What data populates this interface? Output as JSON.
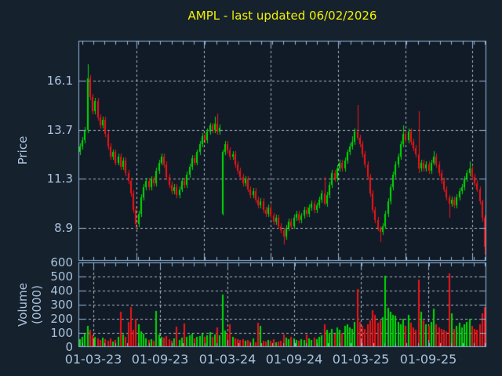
{
  "title": {
    "text": "AMPL - last updated 06/02/2026",
    "color": "#f2f200"
  },
  "price_axis": {
    "label": "Price",
    "ticks": [
      16.1,
      13.7,
      11.3,
      8.9
    ]
  },
  "volume_axis": {
    "label": "Volume (0000)",
    "ticks": [
      600,
      500,
      400,
      300,
      200,
      100,
      0
    ]
  },
  "x_axis": {
    "ticks": [
      "01-03-23",
      "01-09-23",
      "01-03-24",
      "01-09-24",
      "01-03-25",
      "01-09-25"
    ]
  },
  "colors": {
    "figure_bg": "#16212e",
    "axes_bg": "#111b28",
    "spine": "#94b8d8",
    "tick_label": "#a9c3dc",
    "grid": "rgba(205,212,220,0.85)",
    "up": "#00dc00",
    "down": "#f21414"
  },
  "chart_data": {
    "type": "candlestick",
    "title": "AMPL - last updated 06/02/2026",
    "ylabel": "Price",
    "ylabel2": "Volume (0000)",
    "x_tick_labels": [
      "01-03-23",
      "01-09-23",
      "01-03-24",
      "01-09-24",
      "01-03-25",
      "01-09-25"
    ],
    "price_yticks": [
      16.1,
      13.7,
      11.3,
      8.9
    ],
    "price_ylim": [
      7.3,
      18.05
    ],
    "volume_yticks": [
      0,
      100,
      200,
      300,
      400,
      500,
      600
    ],
    "volume_ylim": [
      0,
      600
    ],
    "grid": true,
    "legend": false,
    "up_color": "#00dc00",
    "down_color": "#f21414",
    "ohlc": [
      [
        12.6,
        13.05,
        12.45,
        12.9
      ],
      [
        12.9,
        13.35,
        12.75,
        13.2
      ],
      [
        13.2,
        13.85,
        13.05,
        13.7
      ],
      [
        13.7,
        16.9,
        13.55,
        16.2
      ],
      [
        16.2,
        16.35,
        15.15,
        15.3
      ],
      [
        15.3,
        15.45,
        14.45,
        14.6
      ],
      [
        14.6,
        15.25,
        14.45,
        15.1
      ],
      [
        15.1,
        15.25,
        14.15,
        14.3
      ],
      [
        14.3,
        14.45,
        13.75,
        13.9
      ],
      [
        13.9,
        14.35,
        13.75,
        14.2
      ],
      [
        14.2,
        14.35,
        13.35,
        13.5
      ],
      [
        13.5,
        13.65,
        12.75,
        12.9
      ],
      [
        12.9,
        13.05,
        12.25,
        12.4
      ],
      [
        12.4,
        12.75,
        12.25,
        12.6
      ],
      [
        12.6,
        12.75,
        11.95,
        12.1
      ],
      [
        12.1,
        12.55,
        11.95,
        12.4
      ],
      [
        12.4,
        12.55,
        11.75,
        11.9
      ],
      [
        11.9,
        12.35,
        11.75,
        12.2
      ],
      [
        12.2,
        12.35,
        11.45,
        11.6
      ],
      [
        11.6,
        11.75,
        11.05,
        11.2
      ],
      [
        11.2,
        11.35,
        10.45,
        10.6
      ],
      [
        10.6,
        10.75,
        9.65,
        9.8
      ],
      [
        9.8,
        9.95,
        8.85,
        9.1
      ],
      [
        9.1,
        9.75,
        8.95,
        9.6
      ],
      [
        9.6,
        10.55,
        9.45,
        10.4
      ],
      [
        10.4,
        11.05,
        10.25,
        10.9
      ],
      [
        10.9,
        11.35,
        10.75,
        11.2
      ],
      [
        11.2,
        11.35,
        10.75,
        10.9
      ],
      [
        10.9,
        11.45,
        10.75,
        11.3
      ],
      [
        11.3,
        11.45,
        10.95,
        11.1
      ],
      [
        11.1,
        11.85,
        10.95,
        11.7
      ],
      [
        11.7,
        12.25,
        11.55,
        12.1
      ],
      [
        12.1,
        12.55,
        11.95,
        12.4
      ],
      [
        12.4,
        12.55,
        11.85,
        12.0
      ],
      [
        12.0,
        12.15,
        11.25,
        11.4
      ],
      [
        11.4,
        11.55,
        10.85,
        11.0
      ],
      [
        11.0,
        11.15,
        10.55,
        10.7
      ],
      [
        10.7,
        11.05,
        10.55,
        10.9
      ],
      [
        10.9,
        11.05,
        10.35,
        10.5
      ],
      [
        10.5,
        10.95,
        10.35,
        10.8
      ],
      [
        10.8,
        11.35,
        10.65,
        11.2
      ],
      [
        11.2,
        11.35,
        10.85,
        11.0
      ],
      [
        11.0,
        11.65,
        10.85,
        11.5
      ],
      [
        11.5,
        12.05,
        11.35,
        11.9
      ],
      [
        11.9,
        12.45,
        11.75,
        12.3
      ],
      [
        12.3,
        12.45,
        11.95,
        12.1
      ],
      [
        12.1,
        12.75,
        11.95,
        12.6
      ],
      [
        12.6,
        13.15,
        12.45,
        13.0
      ],
      [
        13.0,
        13.55,
        12.85,
        13.4
      ],
      [
        13.4,
        13.55,
        13.05,
        13.2
      ],
      [
        13.2,
        13.75,
        13.05,
        13.6
      ],
      [
        13.6,
        14.05,
        13.45,
        13.9
      ],
      [
        13.9,
        14.05,
        13.55,
        13.7
      ],
      [
        13.7,
        14.35,
        13.55,
        14.0
      ],
      [
        14.0,
        14.5,
        13.45,
        13.6
      ],
      [
        13.6,
        13.95,
        13.45,
        13.8
      ],
      [
        9.6,
        12.75,
        9.5,
        12.6
      ],
      [
        12.6,
        13.15,
        12.45,
        13.0
      ],
      [
        13.0,
        13.15,
        12.55,
        12.7
      ],
      [
        12.7,
        12.85,
        12.25,
        12.4
      ],
      [
        12.4,
        12.65,
        12.25,
        12.5
      ],
      [
        12.5,
        12.65,
        11.85,
        12.0
      ],
      [
        12.0,
        12.15,
        11.55,
        11.7
      ],
      [
        11.7,
        11.85,
        11.25,
        11.4
      ],
      [
        11.4,
        11.55,
        10.95,
        11.1
      ],
      [
        11.1,
        11.45,
        10.95,
        11.3
      ],
      [
        11.3,
        11.45,
        10.65,
        10.8
      ],
      [
        10.8,
        10.95,
        10.35,
        10.5
      ],
      [
        10.5,
        10.85,
        10.35,
        10.7
      ],
      [
        10.7,
        10.85,
        10.15,
        10.3
      ],
      [
        10.3,
        10.45,
        9.85,
        10.0
      ],
      [
        10.0,
        10.35,
        9.85,
        10.2
      ],
      [
        10.2,
        10.35,
        9.65,
        9.8
      ],
      [
        9.8,
        9.95,
        9.45,
        9.6
      ],
      [
        9.6,
        10.05,
        9.45,
        9.9
      ],
      [
        9.9,
        10.05,
        9.35,
        9.5
      ],
      [
        9.5,
        9.65,
        9.05,
        9.2
      ],
      [
        9.2,
        9.55,
        9.05,
        9.4
      ],
      [
        9.4,
        9.55,
        8.85,
        9.0
      ],
      [
        9.0,
        9.15,
        8.65,
        8.8
      ],
      [
        8.8,
        8.9,
        8.1,
        8.5
      ],
      [
        8.5,
        9.05,
        8.35,
        8.9
      ],
      [
        8.9,
        9.35,
        8.75,
        9.2
      ],
      [
        9.2,
        9.35,
        8.85,
        9.0
      ],
      [
        9.0,
        9.55,
        8.85,
        9.4
      ],
      [
        9.4,
        9.75,
        9.25,
        9.6
      ],
      [
        9.6,
        9.75,
        9.15,
        9.3
      ],
      [
        9.3,
        9.65,
        9.15,
        9.5
      ],
      [
        9.5,
        9.95,
        9.35,
        9.8
      ],
      [
        9.8,
        9.95,
        9.45,
        9.6
      ],
      [
        9.6,
        10.05,
        9.45,
        9.9
      ],
      [
        9.9,
        10.25,
        9.75,
        10.1
      ],
      [
        10.1,
        10.25,
        9.65,
        9.8
      ],
      [
        9.8,
        10.15,
        9.65,
        10.0
      ],
      [
        10.0,
        10.45,
        9.85,
        10.3
      ],
      [
        10.3,
        10.75,
        10.15,
        10.6
      ],
      [
        10.6,
        11.4,
        10.0,
        10.1
      ],
      [
        10.1,
        10.65,
        9.95,
        10.5
      ],
      [
        10.5,
        11.15,
        10.35,
        11.0
      ],
      [
        11.0,
        11.75,
        10.85,
        11.6
      ],
      [
        11.6,
        11.75,
        11.15,
        11.3
      ],
      [
        11.3,
        11.95,
        11.15,
        11.8
      ],
      [
        11.8,
        12.25,
        11.65,
        12.1
      ],
      [
        12.1,
        12.25,
        11.65,
        11.8
      ],
      [
        11.8,
        12.35,
        11.65,
        12.2
      ],
      [
        12.2,
        12.75,
        12.05,
        12.6
      ],
      [
        12.6,
        13.05,
        12.45,
        12.9
      ],
      [
        12.9,
        13.4,
        12.75,
        13.1
      ],
      [
        13.1,
        13.75,
        12.95,
        13.6
      ],
      [
        13.6,
        14.9,
        13.2,
        13.3
      ],
      [
        13.3,
        13.45,
        12.85,
        13.0
      ],
      [
        13.0,
        13.15,
        12.35,
        12.5
      ],
      [
        12.5,
        12.65,
        11.85,
        12.0
      ],
      [
        12.0,
        12.15,
        11.25,
        11.4
      ],
      [
        11.4,
        11.55,
        10.45,
        10.6
      ],
      [
        10.6,
        10.75,
        9.65,
        9.8
      ],
      [
        9.8,
        9.95,
        9.15,
        9.3
      ],
      [
        9.3,
        9.45,
        8.75,
        8.9
      ],
      [
        8.9,
        9.0,
        8.2,
        8.7
      ],
      [
        8.7,
        9.15,
        8.55,
        9.0
      ],
      [
        9.0,
        9.75,
        8.85,
        9.6
      ],
      [
        9.6,
        10.35,
        9.45,
        10.2
      ],
      [
        10.2,
        11.05,
        10.05,
        10.9
      ],
      [
        10.9,
        11.65,
        10.75,
        11.5
      ],
      [
        11.5,
        12.15,
        11.35,
        12.0
      ],
      [
        12.0,
        12.55,
        11.85,
        12.4
      ],
      [
        12.4,
        13.15,
        12.25,
        13.0
      ],
      [
        13.0,
        13.9,
        12.85,
        13.5
      ],
      [
        13.5,
        13.65,
        13.05,
        13.2
      ],
      [
        13.2,
        13.75,
        13.05,
        13.6
      ],
      [
        13.6,
        13.75,
        12.95,
        13.1
      ],
      [
        13.1,
        13.25,
        12.65,
        12.8
      ],
      [
        12.8,
        12.95,
        12.35,
        12.5
      ],
      [
        12.5,
        14.6,
        11.6,
        11.8
      ],
      [
        11.8,
        12.25,
        11.65,
        12.1
      ],
      [
        12.1,
        12.25,
        11.65,
        11.8
      ],
      [
        11.8,
        12.15,
        11.65,
        12.0
      ],
      [
        12.0,
        12.15,
        11.55,
        11.7
      ],
      [
        11.7,
        12.25,
        11.55,
        12.1
      ],
      [
        12.1,
        12.65,
        11.95,
        12.4
      ],
      [
        12.4,
        12.55,
        11.85,
        12.0
      ],
      [
        12.0,
        12.15,
        11.45,
        11.6
      ],
      [
        11.6,
        11.75,
        11.05,
        11.2
      ],
      [
        11.2,
        11.35,
        10.65,
        10.8
      ],
      [
        10.8,
        10.95,
        10.25,
        10.4
      ],
      [
        10.4,
        10.5,
        9.4,
        10.1
      ],
      [
        10.1,
        10.45,
        9.95,
        10.3
      ],
      [
        10.3,
        10.45,
        9.85,
        10.0
      ],
      [
        10.0,
        10.55,
        9.85,
        10.4
      ],
      [
        10.4,
        10.85,
        10.25,
        10.7
      ],
      [
        10.7,
        11.05,
        10.55,
        10.9
      ],
      [
        10.9,
        11.45,
        10.75,
        11.3
      ],
      [
        11.3,
        11.75,
        11.15,
        11.6
      ],
      [
        11.6,
        12.15,
        11.45,
        11.8
      ],
      [
        11.8,
        11.95,
        11.25,
        11.4
      ],
      [
        11.4,
        11.55,
        10.95,
        11.1
      ],
      [
        11.1,
        11.25,
        10.65,
        10.8
      ],
      [
        10.8,
        10.95,
        10.05,
        10.2
      ],
      [
        10.2,
        10.3,
        9.2,
        9.4
      ],
      [
        9.4,
        9.5,
        7.6,
        8.0
      ]
    ],
    "volumes": [
      55,
      70,
      95,
      150,
      120,
      85,
      75,
      60,
      50,
      65,
      55,
      45,
      60,
      40,
      50,
      70,
      250,
      90,
      75,
      180,
      285,
      120,
      200,
      160,
      110,
      95,
      60,
      50,
      55,
      45,
      255,
      90,
      75,
      65,
      80,
      55,
      45,
      60,
      145,
      50,
      65,
      165,
      75,
      85,
      95,
      60,
      70,
      80,
      95,
      70,
      85,
      105,
      75,
      90,
      140,
      85,
      370,
      115,
      95,
      160,
      70,
      62,
      55,
      48,
      58,
      45,
      52,
      40,
      60,
      35,
      175,
      150,
      42,
      38,
      50,
      44,
      58,
      36,
      40,
      47,
      90,
      65,
      55,
      70,
      60,
      52,
      45,
      58,
      48,
      90,
      62,
      50,
      66,
      58,
      72,
      85,
      160,
      120,
      100,
      130,
      95,
      140,
      120,
      100,
      150,
      160,
      140,
      130,
      180,
      410,
      180,
      150,
      130,
      160,
      190,
      260,
      230,
      170,
      190,
      210,
      505,
      280,
      250,
      230,
      220,
      180,
      160,
      200,
      150,
      230,
      170,
      140,
      120,
      480,
      250,
      190,
      160,
      150,
      180,
      275,
      160,
      140,
      130,
      120,
      110,
      525,
      240,
      130,
      150,
      170,
      140,
      160,
      180,
      200,
      150,
      130,
      120,
      160,
      240,
      285
    ]
  }
}
